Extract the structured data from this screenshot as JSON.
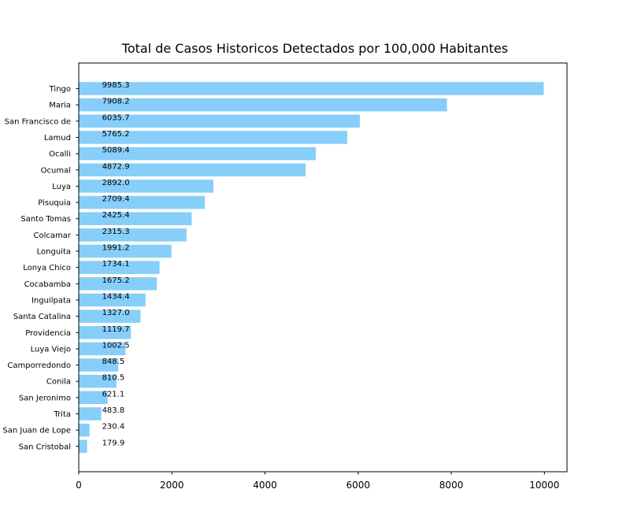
{
  "chart_data": {
    "type": "bar",
    "orientation": "horizontal",
    "title": "Total de Casos Historicos Detectados por 100,000 Habitantes",
    "xlabel": "",
    "ylabel": "",
    "categories": [
      "Tingo",
      "Maria",
      "San Francisco de",
      "Lamud",
      "Ocalli",
      "Ocumal",
      "Luya",
      "Pisuquia",
      "Santo Tomas",
      "Colcamar",
      "Longuita",
      "Lonya Chico",
      "Cocabamba",
      "Inguilpata",
      "Santa Catalina",
      "Providencia",
      "Luya Viejo",
      "Camporredondo",
      "Conila",
      "San Jeronimo",
      "Trita",
      "San Juan de Lope",
      "San Cristobal"
    ],
    "values": [
      9985.3,
      7908.2,
      6035.7,
      5765.2,
      5089.4,
      4872.9,
      2892.0,
      2709.4,
      2425.4,
      2315.3,
      1991.2,
      1734.1,
      1675.2,
      1434.4,
      1327.0,
      1119.7,
      1002.5,
      848.5,
      810.5,
      621.1,
      483.8,
      230.4,
      179.9
    ],
    "value_labels": [
      "9985.3",
      "7908.2",
      "6035.7",
      "5765.2",
      "5089.4",
      "4872.9",
      "2892.0",
      "2709.4",
      "2425.4",
      "2315.3",
      "1991.2",
      "1734.1",
      "1675.2",
      "1434.4",
      "1327.0",
      "1119.7",
      "1002.5",
      "848.5",
      "810.5",
      "621.1",
      "483.8",
      "230.4",
      "179.9"
    ],
    "label_x_value": 500,
    "xlim": [
      0,
      10484.6
    ],
    "xticks": [
      0,
      2000,
      4000,
      6000,
      8000,
      10000
    ],
    "xtick_labels": [
      "0",
      "2000",
      "4000",
      "6000",
      "8000",
      "10000"
    ],
    "bar_color": "#87cefa",
    "grid": false,
    "legend": false
  }
}
